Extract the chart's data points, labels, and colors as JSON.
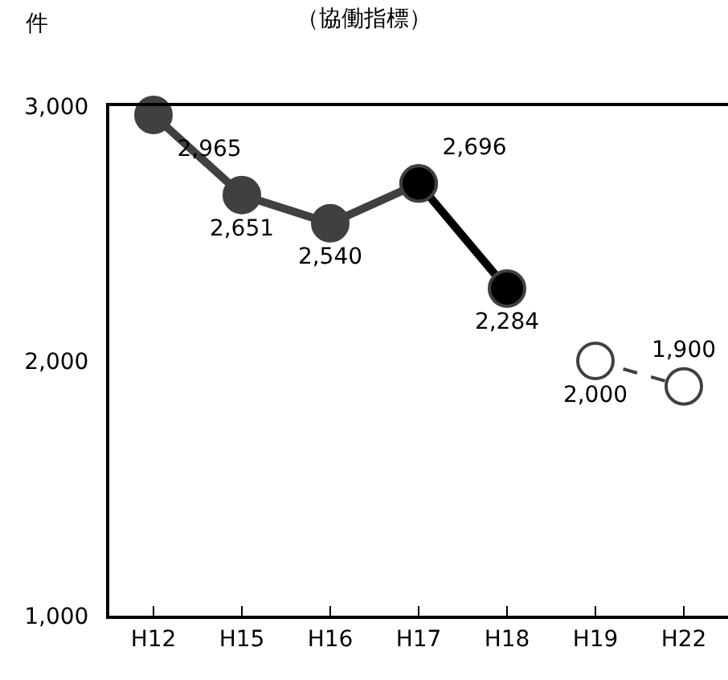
{
  "chart_data": {
    "type": "line",
    "title": "（協働指標）",
    "ylabel": "件",
    "categories": [
      "H12",
      "H15",
      "H16",
      "H17",
      "H18",
      "H19",
      "H22"
    ],
    "series": [
      {
        "color": "#404040",
        "values": [
          2965,
          2651,
          2540,
          2696,
          null,
          null,
          null
        ],
        "value_labels": [
          "2,965",
          "2,651",
          "2,540",
          "2,696",
          null,
          null,
          null
        ]
      },
      {
        "color": "#000000",
        "values": [
          null,
          null,
          null,
          2696,
          2284,
          null,
          null
        ],
        "value_labels": [
          null,
          null,
          null,
          null,
          "2,284",
          null,
          null
        ]
      },
      {
        "color": "#404040",
        "values": [
          null,
          null,
          null,
          null,
          null,
          2000,
          1900
        ],
        "value_labels": [
          null,
          null,
          null,
          null,
          null,
          "2,000",
          "1,900"
        ],
        "line_style": "dashed"
      }
    ],
    "ylim": [
      1000,
      3000
    ],
    "yticks": [
      {
        "value": 1000,
        "label": "1,000"
      },
      {
        "value": 2000,
        "label": "2,000"
      },
      {
        "value": 3000,
        "label": "3,000"
      }
    ],
    "marker": "circle",
    "grid": false
  }
}
